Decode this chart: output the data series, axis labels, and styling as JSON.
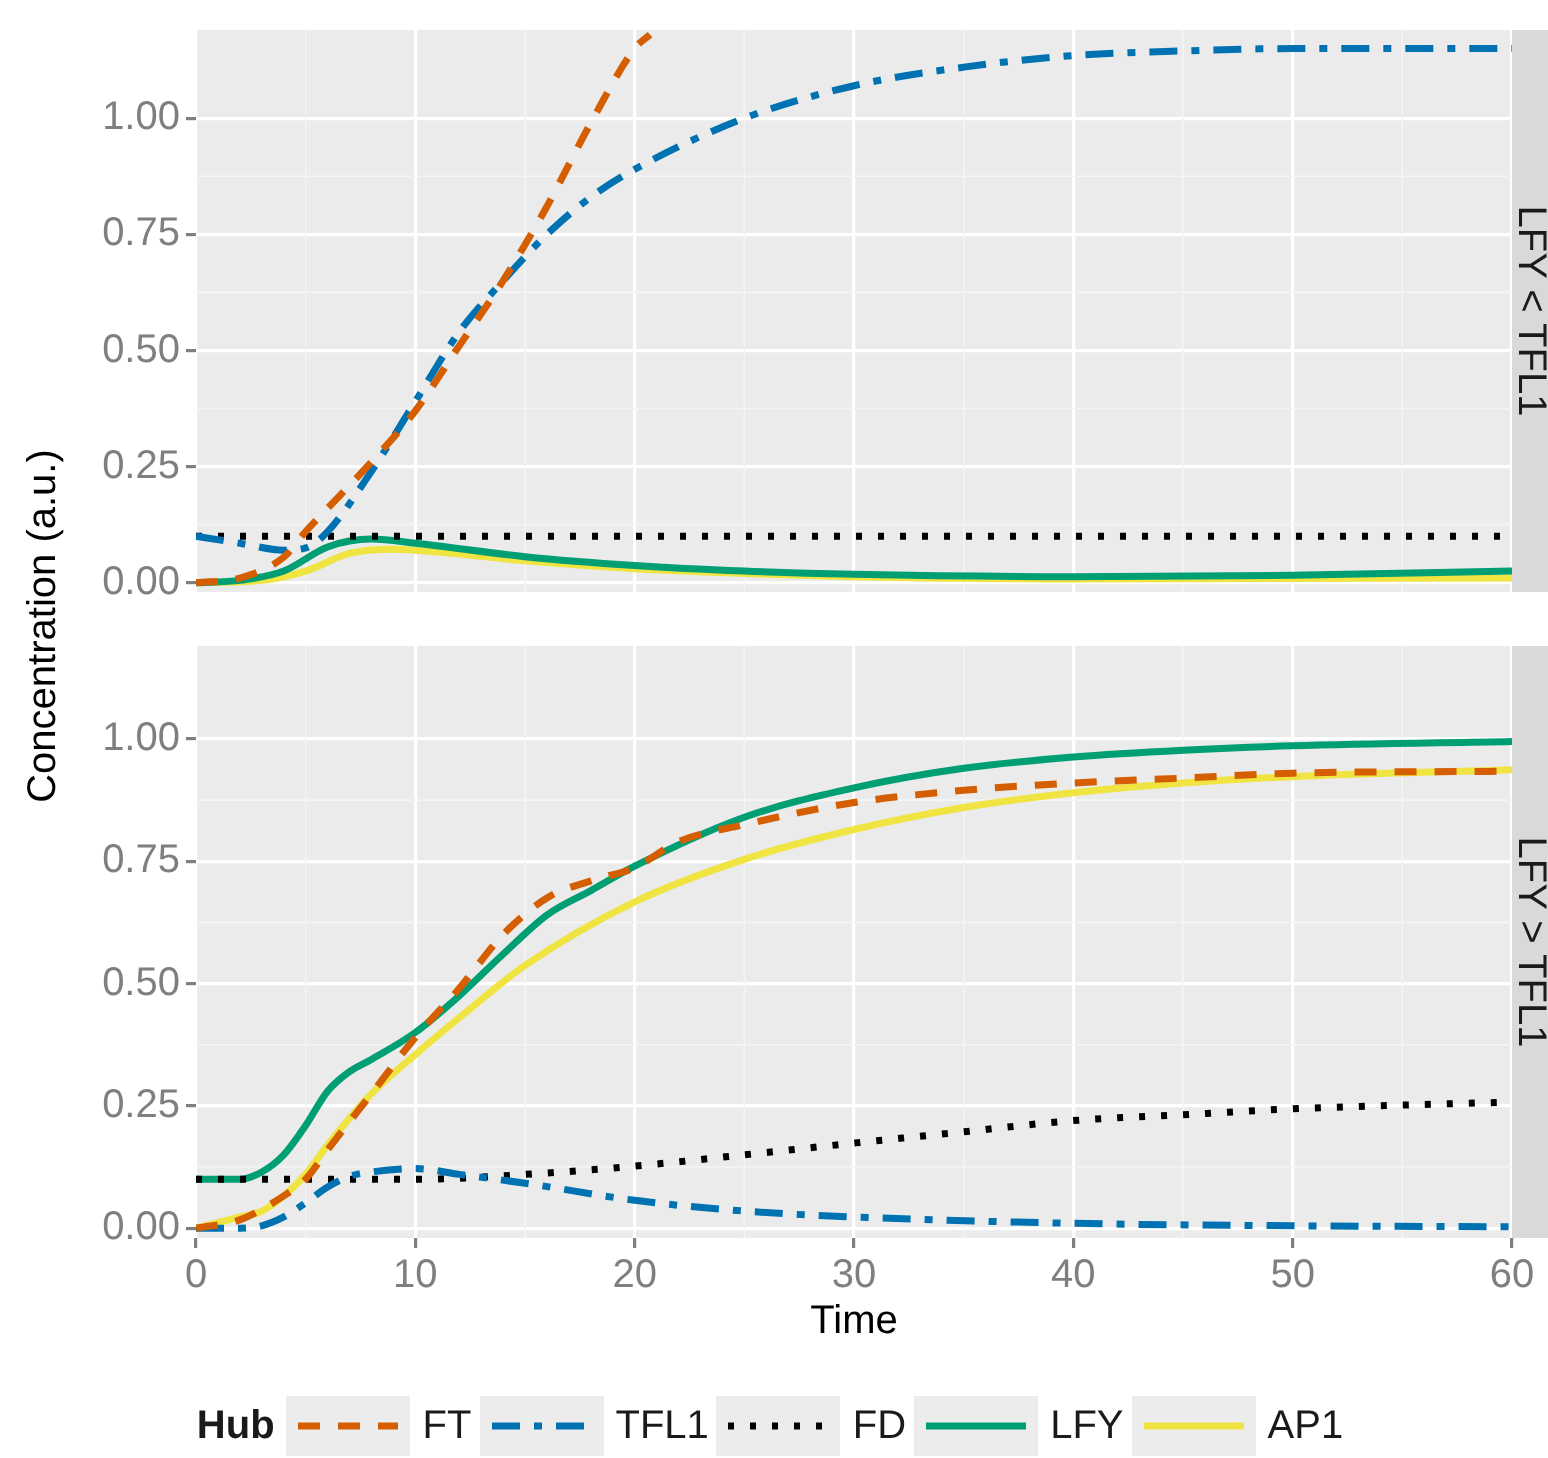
{
  "chart_data": [
    {
      "type": "line",
      "title": "LFY < TFL1",
      "ylabel": "Concentration (a.u.)",
      "xlim": [
        0,
        60
      ],
      "xticks": [
        0,
        10,
        20,
        30,
        40,
        50,
        60
      ],
      "ylim": [
        -0.02,
        1.19
      ],
      "yticks": [
        {
          "value": 0,
          "label": "0.00"
        },
        {
          "value": 0.25,
          "label": "0.25"
        },
        {
          "value": 0.5,
          "label": "0.50"
        },
        {
          "value": 0.75,
          "label": "0.75"
        },
        {
          "value": 1,
          "label": "1.00"
        }
      ],
      "tick_labels": "y",
      "grid": true,
      "marker": "none",
      "legend_title": "Hub",
      "legend": "bottom",
      "series": [
        {
          "name": "FT",
          "color": "#d55e00",
          "line_style": "dashed",
          "x": [
            0,
            2,
            4,
            5,
            6,
            8,
            10,
            12,
            14,
            16,
            18,
            20,
            20.7
          ],
          "values": [
            0,
            0.01,
            0.055,
            0.11,
            0.16,
            0.26,
            0.37,
            0.51,
            0.65,
            0.81,
            0.99,
            1.15,
            1.18
          ]
        },
        {
          "name": "TFL1",
          "color": "#0072b2",
          "line_style": "dashdot",
          "x": [
            0,
            2,
            4,
            5,
            6,
            8,
            10,
            12,
            14,
            16,
            18,
            20,
            25,
            30,
            35,
            40,
            45,
            50,
            60
          ],
          "values": [
            0.1,
            0.085,
            0.07,
            0.075,
            0.11,
            0.24,
            0.39,
            0.54,
            0.65,
            0.75,
            0.83,
            0.89,
            1.0,
            1.07,
            1.11,
            1.135,
            1.145,
            1.15,
            1.15
          ]
        },
        {
          "name": "FD",
          "color": "#000000",
          "line_style": "dotted",
          "x": [
            0,
            60
          ],
          "values": [
            0.1,
            0.1
          ]
        },
        {
          "name": "LFY",
          "color": "#009e73",
          "line_style": "solid",
          "x": [
            0,
            2,
            4,
            6,
            8,
            10,
            15,
            20,
            25,
            30,
            40,
            50,
            60
          ],
          "values": [
            0,
            0.005,
            0.025,
            0.077,
            0.094,
            0.085,
            0.056,
            0.037,
            0.025,
            0.018,
            0.013,
            0.016,
            0.025
          ]
        },
        {
          "name": "AP1",
          "color": "#f0e442",
          "line_style": "solid",
          "x": [
            0,
            3,
            5,
            7,
            9,
            11,
            15,
            20,
            25,
            30,
            40,
            60
          ],
          "values": [
            0,
            0.005,
            0.025,
            0.063,
            0.072,
            0.066,
            0.047,
            0.03,
            0.02,
            0.013,
            0.008,
            0.01
          ]
        }
      ]
    },
    {
      "type": "line",
      "title": "LFY > TFL1",
      "xlabel": "Time",
      "xlim": [
        0,
        60
      ],
      "xticks": [
        0,
        10,
        20,
        30,
        40,
        50,
        60
      ],
      "ylim": [
        -0.02,
        1.19
      ],
      "yticks": [
        {
          "value": 0,
          "label": "0.00"
        },
        {
          "value": 0.25,
          "label": "0.25"
        },
        {
          "value": 0.5,
          "label": "0.50"
        },
        {
          "value": 0.75,
          "label": "0.75"
        },
        {
          "value": 1,
          "label": "1.00"
        }
      ],
      "grid": true,
      "marker": "none",
      "series": [
        {
          "color": "#d55e00",
          "line_style": "dashed",
          "x": [
            0,
            2,
            4,
            5,
            6,
            8,
            10,
            12,
            14,
            16,
            18,
            20,
            22,
            25,
            30,
            35,
            40,
            45,
            50,
            60
          ],
          "values": [
            0,
            0.017,
            0.066,
            0.1,
            0.16,
            0.275,
            0.39,
            0.49,
            0.6,
            0.675,
            0.71,
            0.737,
            0.79,
            0.825,
            0.87,
            0.895,
            0.91,
            0.92,
            0.93,
            0.934
          ]
        },
        {
          "color": "#0072b2",
          "line_style": "dashdot",
          "x": [
            0,
            2,
            3,
            4,
            5,
            6,
            7,
            8,
            10,
            12,
            15,
            20,
            25,
            30,
            40,
            50,
            60
          ],
          "values": [
            0,
            0,
            0.005,
            0.023,
            0.052,
            0.084,
            0.106,
            0.115,
            0.122,
            0.11,
            0.092,
            0.057,
            0.035,
            0.023,
            0.01,
            0.005,
            0.003
          ]
        },
        {
          "color": "#000000",
          "line_style": "dotted",
          "x": [
            0,
            10,
            15,
            20,
            25,
            30,
            35,
            40,
            45,
            50,
            60
          ],
          "values": [
            0.1,
            0.1,
            0.11,
            0.127,
            0.15,
            0.174,
            0.197,
            0.22,
            0.232,
            0.244,
            0.258
          ]
        },
        {
          "color": "#009e73",
          "line_style": "solid",
          "x": [
            0,
            2,
            3,
            4,
            5,
            6,
            7,
            8,
            10,
            12,
            14,
            16,
            18,
            20,
            25,
            30,
            35,
            40,
            45,
            50,
            60
          ],
          "values": [
            0.1,
            0.1,
            0.115,
            0.15,
            0.21,
            0.28,
            0.32,
            0.345,
            0.4,
            0.475,
            0.56,
            0.64,
            0.69,
            0.74,
            0.84,
            0.9,
            0.94,
            0.963,
            0.977,
            0.986,
            0.995
          ]
        },
        {
          "color": "#f0e442",
          "line_style": "solid",
          "x": [
            0,
            2,
            3,
            4,
            5,
            6,
            8,
            10,
            12,
            15,
            20,
            25,
            30,
            35,
            40,
            45,
            50,
            60
          ],
          "values": [
            0,
            0.023,
            0.035,
            0.066,
            0.11,
            0.17,
            0.275,
            0.355,
            0.43,
            0.537,
            0.667,
            0.754,
            0.815,
            0.86,
            0.89,
            0.91,
            0.923,
            0.937
          ]
        }
      ]
    }
  ]
}
